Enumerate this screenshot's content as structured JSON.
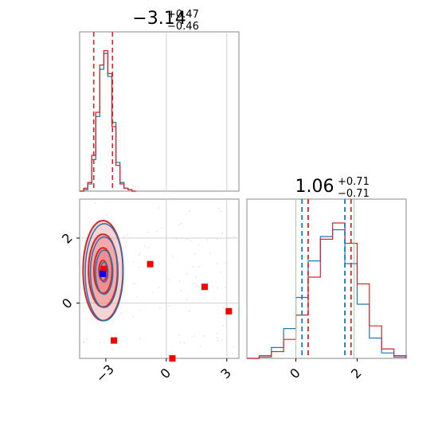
{
  "chart_data": {
    "type": "corner",
    "panels": [
      {
        "id": "hist-param1",
        "type": "histogram",
        "title": {
          "median": "−3.14",
          "plus": "+0.47",
          "minus": "−0.46"
        },
        "xlim": [
          -4.3,
          3.6
        ],
        "series": [
          {
            "name": "",
            "color": "#1f77b4",
            "x": [
              -4.3,
              -4.1,
              -3.9,
              -3.7,
              -3.5,
              -3.3,
              -3.1,
              -2.9,
              -2.7,
              -2.5,
              -2.3,
              -2.1,
              -1.9,
              -1.7,
              -1.5
            ],
            "values": [
              0,
              0.01,
              0.05,
              0.22,
              0.52,
              0.85,
              0.96,
              0.8,
              0.48,
              0.2,
              0.06,
              0.02,
              0.01,
              0,
              0
            ]
          },
          {
            "name": "",
            "color": "#d62728",
            "x": [
              -4.3,
              -4.1,
              -3.9,
              -3.7,
              -3.5,
              -3.3,
              -3.1,
              -2.9,
              -2.7,
              -2.5,
              -2.3,
              -2.1,
              -1.9,
              -1.7,
              -1.5
            ],
            "values": [
              0,
              0.02,
              0.06,
              0.25,
              0.55,
              0.88,
              0.98,
              0.82,
              0.45,
              0.18,
              0.05,
              0.02,
              0.01,
              0,
              0
            ]
          }
        ],
        "quantile_lines": [
          -3.6,
          -2.67
        ],
        "quantile_color": "#d62728"
      },
      {
        "id": "hist-param2",
        "type": "histogram",
        "title": {
          "median": "1.06",
          "plus": "+0.71",
          "minus": "−0.71"
        },
        "xlim": [
          -1.6,
          3.6
        ],
        "xticks": [
          0,
          2
        ],
        "series": [
          {
            "name": "",
            "color": "#1f77b4",
            "x": [
              -1.6,
              -1.2,
              -0.8,
              -0.4,
              0,
              0.4,
              0.8,
              1.2,
              1.6,
              2.0,
              2.4,
              2.8,
              3.2,
              3.6
            ],
            "values": [
              0,
              0.02,
              0.08,
              0.22,
              0.45,
              0.72,
              0.9,
              0.95,
              0.7,
              0.4,
              0.15,
              0.04,
              0.01,
              0
            ]
          },
          {
            "name": "",
            "color": "#d62728",
            "x": [
              -1.6,
              -1.2,
              -0.8,
              -0.4,
              0,
              0.4,
              0.8,
              1.2,
              1.6,
              2.0,
              2.4,
              2.8,
              3.2,
              3.6
            ],
            "values": [
              0,
              0.01,
              0.05,
              0.14,
              0.32,
              0.6,
              0.88,
              1.0,
              0.85,
              0.55,
              0.24,
              0.07,
              0.02,
              0
            ]
          }
        ],
        "quantile_lines_blue": [
          0.2,
          1.6
        ],
        "quantile_lines_red": [
          0.4,
          1.8
        ],
        "truth_lines": [
          0.0,
          1.9
        ]
      },
      {
        "id": "scatter-2d",
        "type": "scatter",
        "xlim": [
          -4.3,
          3.6
        ],
        "ylim": [
          -1.7,
          3.2
        ],
        "xticks": [
          -3,
          0,
          3
        ],
        "yticks": [
          0,
          2
        ],
        "tick_labels_x": [
          "−3",
          "0",
          "3"
        ],
        "tick_labels_y": [
          "0",
          "2"
        ],
        "gridlines_x": [
          0,
          3
        ],
        "gridlines_y": [
          0,
          2
        ],
        "contour_center": {
          "x": -3.14,
          "y": 1.0
        },
        "contour_sigma": {
          "x": 0.45,
          "y": 0.7
        },
        "red_markers": [
          {
            "x": -3.1,
            "y": 1.05
          },
          {
            "x": -0.8,
            "y": 1.2
          },
          {
            "x": 1.9,
            "y": 0.5
          },
          {
            "x": 3.1,
            "y": -0.25
          },
          {
            "x": -2.6,
            "y": -1.15
          },
          {
            "x": 0.3,
            "y": -1.7
          }
        ],
        "blue_marker": {
          "x": -3.15,
          "y": 0.9
        }
      }
    ],
    "colors": {
      "blue": "#1f77b4",
      "red": "#d62728",
      "fill_red": "#f08080",
      "grid": "#d0d0d0",
      "marker_red": "#ff0000",
      "marker_blue": "#0000ff"
    }
  }
}
